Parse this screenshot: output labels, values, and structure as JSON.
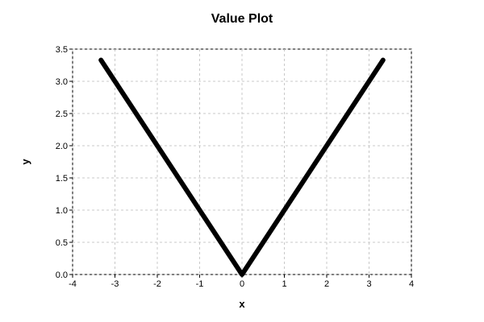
{
  "chart_data": {
    "type": "line",
    "title": "Value Plot",
    "xlabel": "x",
    "ylabel": "y",
    "xlim": [
      -4,
      4
    ],
    "ylim": [
      0.0,
      3.5
    ],
    "xticks": [
      "-4",
      "-3",
      "-2",
      "-1",
      "0",
      "1",
      "2",
      "3",
      "4"
    ],
    "yticks": [
      "0.0",
      "0.5",
      "1.0",
      "1.5",
      "2.0",
      "2.5",
      "3.0",
      "3.5"
    ],
    "grid": true,
    "legend": "none",
    "series": [
      {
        "x": [
          -3.33,
          0,
          3.33
        ],
        "y": [
          3.33,
          0,
          3.33
        ],
        "color": "#000000"
      }
    ]
  }
}
